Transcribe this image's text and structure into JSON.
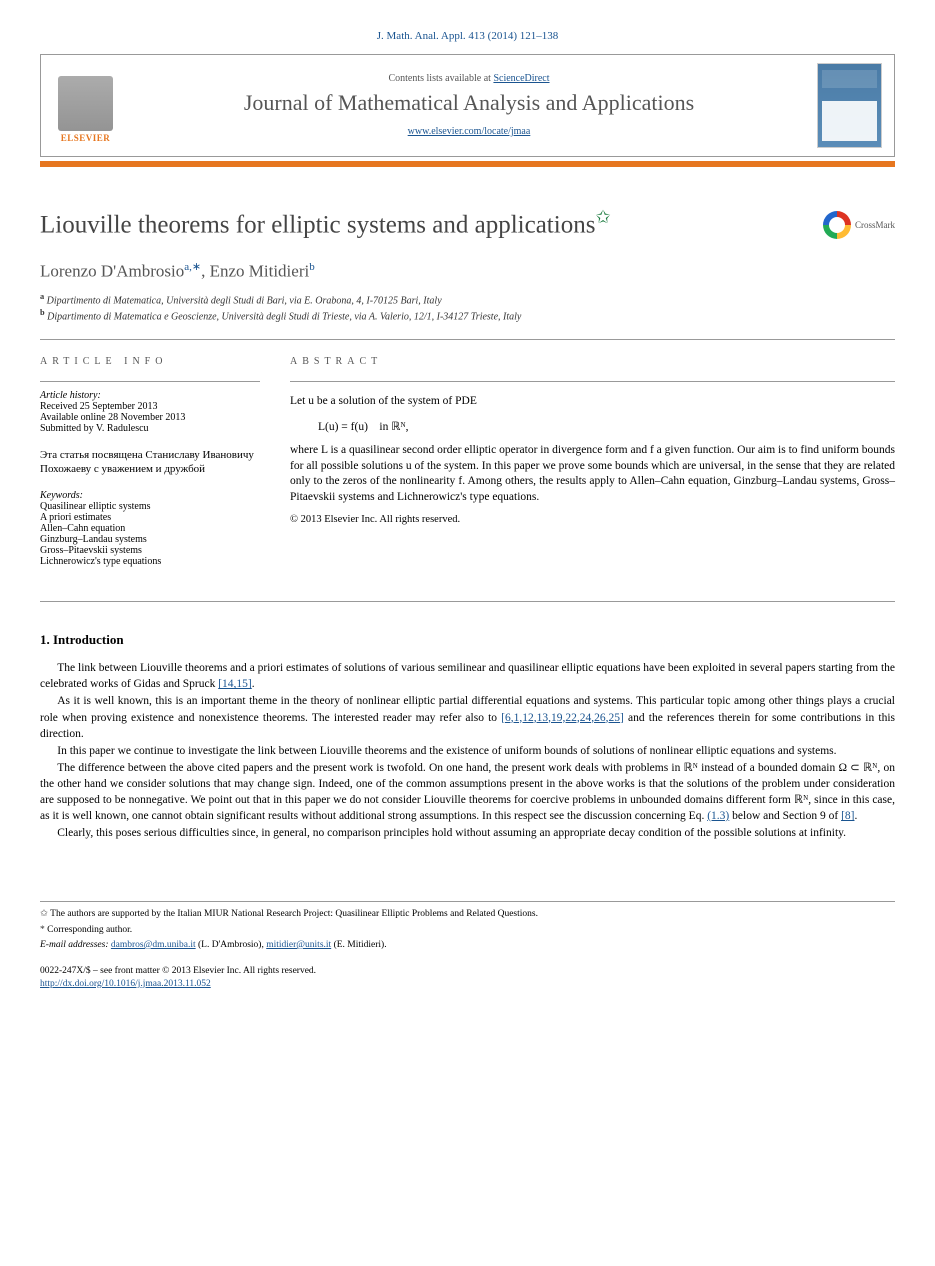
{
  "citation": "J. Math. Anal. Appl. 413 (2014) 121–138",
  "header": {
    "contents_prefix": "Contents lists available at ",
    "contents_link": "ScienceDirect",
    "journal_name": "Journal of Mathematical Analysis and Applications",
    "journal_url": "www.elsevier.com/locate/jmaa",
    "publisher": "ELSEVIER"
  },
  "crossmark": "CrossMark",
  "title": "Liouville theorems for elliptic systems and applications",
  "authors_html": "Lorenzo D'Ambrosio",
  "author1": "Lorenzo D'Ambrosio",
  "author1_sup": "a,∗",
  "author_sep": ", ",
  "author2": "Enzo Mitidieri",
  "author2_sup": "b",
  "affiliations": {
    "a_sup": "a",
    "a": " Dipartimento di Matematica, Università degli Studi di Bari, via E. Orabona, 4, I-70125 Bari, Italy",
    "b_sup": "b",
    "b": " Dipartimento di Matematica e Geoscienze, Università degli Studi di Trieste, via A. Valerio, 12/1, I-34127 Trieste, Italy"
  },
  "info": {
    "label": "article info",
    "history_hdr": "Article history:",
    "received": "Received 25 September 2013",
    "online": "Available online 28 November 2013",
    "submitted": "Submitted by V. Radulescu",
    "dedication": "Эта статья посвящена Станиславу Ивановичу Похожаеву с уважением и дружбой",
    "keywords_hdr": "Keywords:",
    "keywords": [
      "Quasilinear elliptic systems",
      "A priori estimates",
      "Allen–Cahn equation",
      "Ginzburg–Landau systems",
      "Gross–Pitaevskii systems",
      "Lichnerowicz's type equations"
    ]
  },
  "abstract": {
    "label": "abstract",
    "p1": "Let u be a solution of the system of PDE",
    "eq": "L(u) = f(u) in ℝᴺ,",
    "p2_a": "where L is a quasilinear second order elliptic operator in divergence form and f a given function. Our aim is to find uniform bounds for all possible solutions u of the system. In this paper we prove some bounds which are universal, in the sense that they are related only to the zeros of the nonlinearity f. Among others, the results apply to Allen–Cahn equation, Ginzburg–Landau systems, Gross–Pitaevskii systems and Lichnerowicz's type equations.",
    "copyright": "© 2013 Elsevier Inc. All rights reserved."
  },
  "section1": {
    "heading": "1. Introduction",
    "p1_a": "The link between Liouville theorems and a priori estimates of solutions of various semilinear and quasilinear elliptic equations have been exploited in several papers starting from the celebrated works of Gidas and Spruck ",
    "p1_ref": "[14,15]",
    "p1_b": ".",
    "p2_a": "As it is well known, this is an important theme in the theory of nonlinear elliptic partial differential equations and systems. This particular topic among other things plays a crucial role when proving existence and nonexistence theorems. The interested reader may refer also to ",
    "p2_ref": "[6,1,12,13,19,22,24,26,25]",
    "p2_b": " and the references therein for some contributions in this direction.",
    "p3": "In this paper we continue to investigate the link between Liouville theorems and the existence of uniform bounds of solutions of nonlinear elliptic equations and systems.",
    "p4_a": "The difference between the above cited papers and the present work is twofold. On one hand, the present work deals with problems in ℝᴺ instead of a bounded domain Ω ⊂ ℝᴺ, on the other hand we consider solutions that may change sign. Indeed, one of the common assumptions present in the above works is that the solutions of the problem under consideration are supposed to be nonnegative. We point out that in this paper we do not consider Liouville theorems for coercive problems in unbounded domains different form ℝᴺ, since in this case, as it is well known, one cannot obtain significant results without additional strong assumptions. In this respect see the discussion concerning Eq. ",
    "p4_ref1": "(1.3)",
    "p4_b": " below and Section 9 of ",
    "p4_ref2": "[8]",
    "p4_c": ".",
    "p5": "Clearly, this poses serious difficulties since, in general, no comparison principles hold without assuming an appropriate decay condition of the possible solutions at infinity."
  },
  "footnotes": {
    "funding_mark": "✩",
    "funding": " The authors are supported by the Italian MIUR National Research Project: Quasilinear Elliptic Problems and Related Questions.",
    "corr_mark": "*",
    "corr": " Corresponding author.",
    "email_label": "E-mail addresses: ",
    "email1": "dambros@dm.uniba.it",
    "email1_who": " (L. D'Ambrosio), ",
    "email2": "mitidier@units.it",
    "email2_who": " (E. Mitidieri)."
  },
  "bottom": {
    "line1": "0022-247X/$ – see front matter © 2013 Elsevier Inc. All rights reserved.",
    "doi": "http://dx.doi.org/10.1016/j.jmaa.2013.11.052"
  },
  "colors": {
    "link": "#1a5490",
    "orange": "#e6761f",
    "green": "#1a7a3e"
  }
}
